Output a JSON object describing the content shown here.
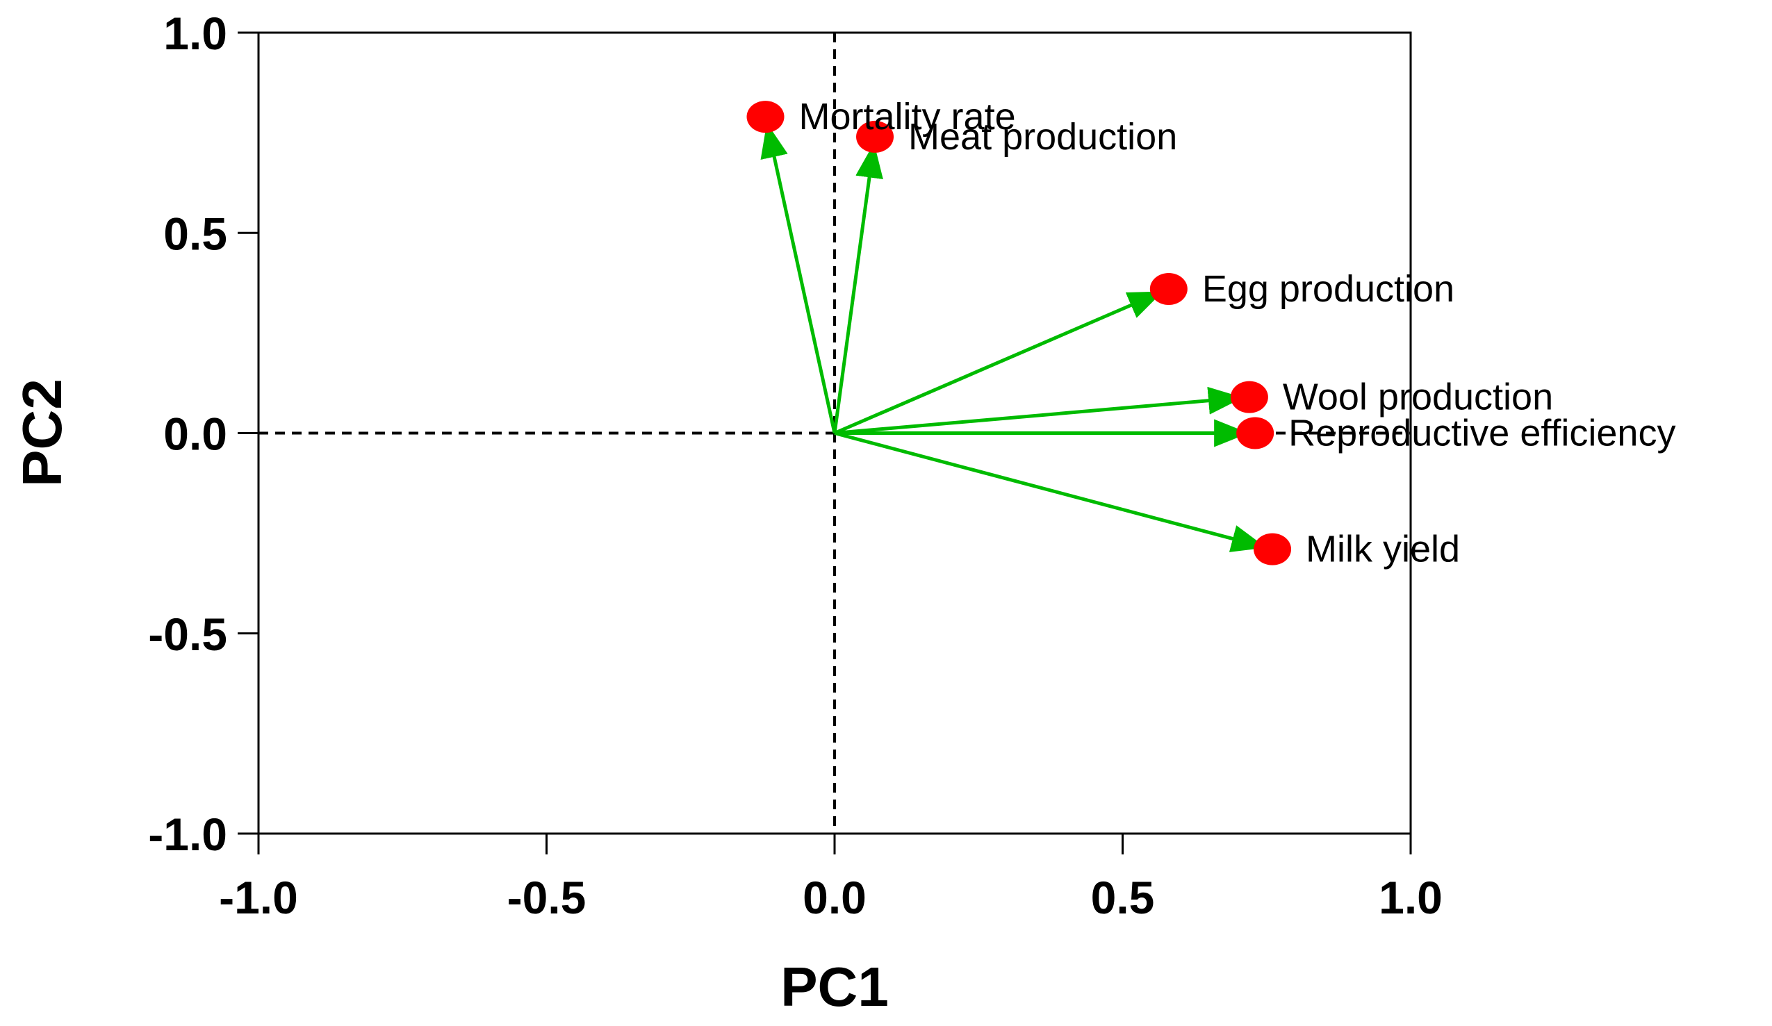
{
  "chart_data": {
    "type": "scatter",
    "subtype": "pca-loading-plot",
    "title": "",
    "xlabel": "PC1",
    "ylabel": "PC2",
    "xlim": [
      -1.0,
      1.0
    ],
    "ylim": [
      -1.0,
      1.0
    ],
    "x_ticks": [
      "-1.0",
      "-0.5",
      "0.0",
      "0.5",
      "1.0"
    ],
    "y_ticks": [
      "1.0",
      "0.5",
      "0.0",
      "-0.5",
      "-1.0"
    ],
    "grid": false,
    "reference_lines": {
      "x": 0,
      "y": 0,
      "style": "dashed"
    },
    "colors": {
      "point": "#ff0000",
      "arrow": "#00bb00",
      "axis": "#000000"
    },
    "points": [
      {
        "label": "Mortality rate",
        "x": -0.12,
        "y": 0.79
      },
      {
        "label": "Meat production",
        "x": 0.07,
        "y": 0.74
      },
      {
        "label": "Egg production",
        "x": 0.58,
        "y": 0.36
      },
      {
        "label": "Wool production",
        "x": 0.72,
        "y": 0.09
      },
      {
        "label": "Reproductive efficiency",
        "x": 0.73,
        "y": 0.0
      },
      {
        "label": "Milk yield",
        "x": 0.76,
        "y": -0.29
      }
    ]
  }
}
